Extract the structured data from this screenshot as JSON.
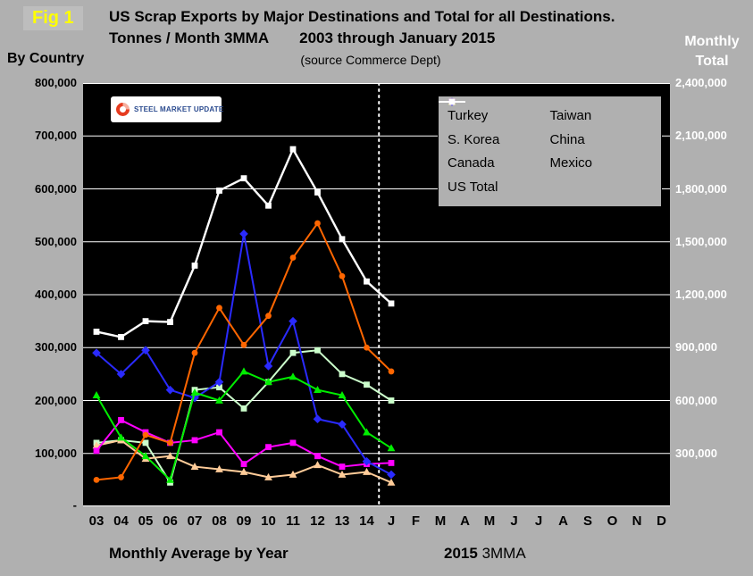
{
  "fig_label": "Fig 1",
  "header": {
    "title_line1": "US Scrap Exports by Major Destinations and Total for all Destinations.",
    "title_line2a": "Tonnes / Month 3MMA",
    "title_line2b": "2003 through January 2015",
    "source": "(source Commerce Dept)"
  },
  "axis_titles": {
    "left": "By Country",
    "right_line1": "Monthly",
    "right_line2": "Total"
  },
  "logo": {
    "text": "STEEL MARKET UPDATE"
  },
  "footer": {
    "left_caption": "Monthly Average by Year",
    "right_caption_bold": "2015",
    "right_caption_regular": "3MMA"
  },
  "colors": {
    "page_bg": "#b0b0b0",
    "plot_bg": "#000000",
    "grid": "#ffffff",
    "divider": "#ffffff"
  },
  "chart_data": {
    "type": "line",
    "title": "US Scrap Exports by Major Destinations and Total for all Destinations. Tonnes / Month 3MMA 2003 through January 2015",
    "x_labels": [
      "03",
      "04",
      "05",
      "06",
      "07",
      "08",
      "09",
      "10",
      "11",
      "12",
      "13",
      "14",
      "J",
      "F",
      "M",
      "A",
      "M",
      "J",
      "J",
      "A",
      "S",
      "O",
      "N",
      "D"
    ],
    "divider_after_index": 11,
    "left_axis": {
      "min": 0,
      "max": 800000,
      "step": 100000,
      "zero_label": "-"
    },
    "right_axis": {
      "min": 0,
      "max": 2400000,
      "step": 300000
    },
    "series": [
      {
        "name": "Turkey",
        "color": "#ff6600",
        "marker": "circle",
        "axis": "left",
        "values": [
          50000,
          55000,
          135000,
          120000,
          290000,
          375000,
          305000,
          360000,
          470000,
          535000,
          435000,
          300000,
          255000
        ]
      },
      {
        "name": "Taiwan",
        "color": "#ccffcc",
        "marker": "square",
        "axis": "left",
        "values": [
          120000,
          125000,
          120000,
          45000,
          220000,
          225000,
          185000,
          235000,
          290000,
          295000,
          250000,
          230000,
          200000
        ]
      },
      {
        "name": "S. Korea",
        "color": "#00ee00",
        "marker": "triangle",
        "axis": "left",
        "values": [
          210000,
          130000,
          95000,
          50000,
          215000,
          200000,
          255000,
          235000,
          245000,
          220000,
          210000,
          140000,
          110000
        ]
      },
      {
        "name": "China",
        "color": "#2a2aff",
        "marker": "diamond",
        "axis": "left",
        "values": [
          290000,
          250000,
          295000,
          220000,
          205000,
          235000,
          515000,
          265000,
          350000,
          165000,
          155000,
          85000,
          60000
        ]
      },
      {
        "name": "Canada",
        "color": "#ff00ff",
        "marker": "square",
        "axis": "left",
        "values": [
          105000,
          163000,
          140000,
          120000,
          125000,
          140000,
          80000,
          112000,
          120000,
          95000,
          75000,
          80000,
          82000
        ]
      },
      {
        "name": "Mexico",
        "color": "#ffcc99",
        "marker": "triangle",
        "axis": "left",
        "values": [
          115000,
          125000,
          90000,
          95000,
          75000,
          70000,
          65000,
          55000,
          60000,
          78000,
          60000,
          65000,
          45000
        ]
      },
      {
        "name": "US Total",
        "color": "#ffffff",
        "marker": "square",
        "axis": "right",
        "values": [
          990000,
          960000,
          1050000,
          1045000,
          1365000,
          1790000,
          1860000,
          1705000,
          2025000,
          1780000,
          1515000,
          1275000,
          1150000
        ]
      }
    ]
  }
}
